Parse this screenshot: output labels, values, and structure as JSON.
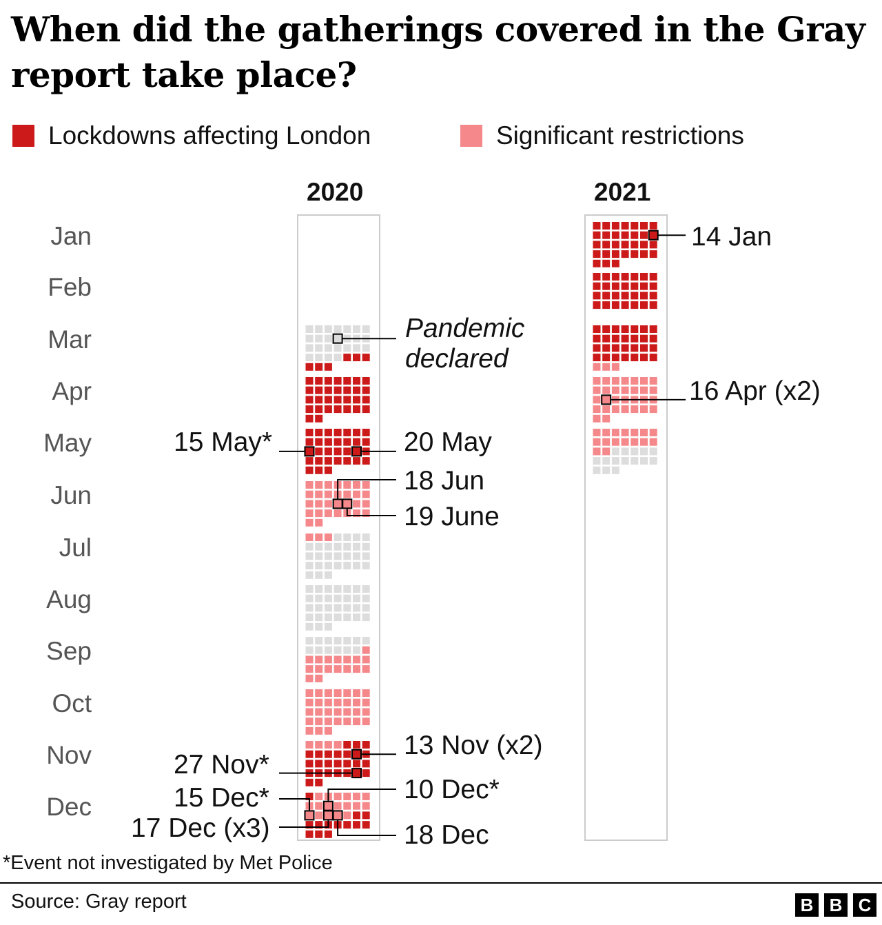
{
  "title": "When did the gatherings covered in the Gray report take place?",
  "legend": [
    {
      "label": "Lockdowns affecting London",
      "color": "#cc1a1a"
    },
    {
      "label": "Significant restrictions",
      "color": "#f5888a"
    }
  ],
  "footnote": "*Event not investigated by Met Police",
  "source": "Source: Gray report",
  "logo": [
    "B",
    "B",
    "C"
  ],
  "chart_data": {
    "type": "heatmap",
    "title": "When did the gatherings covered in the Gray report take place?",
    "months": [
      "Jan",
      "Feb",
      "Mar",
      "Apr",
      "May",
      "Jun",
      "Jul",
      "Aug",
      "Sep",
      "Oct",
      "Nov",
      "Dec"
    ],
    "colors": {
      "lockdown": "#cc1a1a",
      "restrictions": "#f5888a",
      "none": "#dddddd"
    },
    "series": [
      {
        "name": "Lockdowns affecting London",
        "ranges": [
          [
            "2020-03-26",
            "2020-05-31"
          ],
          [
            "2020-11-05",
            "2020-12-01"
          ],
          [
            "2020-12-20",
            "2021-03-28"
          ]
        ]
      },
      {
        "name": "Significant restrictions",
        "ranges": [
          [
            "2020-06-01",
            "2020-07-03"
          ],
          [
            "2020-09-14",
            "2020-11-04"
          ],
          [
            "2020-12-02",
            "2020-12-19"
          ],
          [
            "2021-03-29",
            "2021-05-16"
          ]
        ]
      }
    ],
    "years": [
      {
        "year": "2020",
        "start_month": 3,
        "end_month": 12
      },
      {
        "year": "2021",
        "start_month": 1,
        "end_month": 5
      }
    ],
    "annotations": [
      {
        "date": "2020-03-11",
        "label": "Pandemic declared",
        "side": "right",
        "italic": true
      },
      {
        "date": "2020-05-15",
        "label": "15 May*",
        "side": "left"
      },
      {
        "date": "2020-05-20",
        "label": "20 May",
        "side": "right"
      },
      {
        "date": "2020-06-18",
        "label": "18 Jun",
        "side": "right"
      },
      {
        "date": "2020-06-19",
        "label": "19 June",
        "side": "right"
      },
      {
        "date": "2020-11-13",
        "label": "13 Nov (x2)",
        "side": "right"
      },
      {
        "date": "2020-11-27",
        "label": "27 Nov*",
        "side": "left"
      },
      {
        "date": "2020-12-10",
        "label": "10 Dec*",
        "side": "right"
      },
      {
        "date": "2020-12-15",
        "label": "15 Dec*",
        "side": "left"
      },
      {
        "date": "2020-12-17",
        "label": "17 Dec (x3)",
        "side": "left"
      },
      {
        "date": "2020-12-18",
        "label": "18 Dec",
        "side": "right"
      },
      {
        "date": "2021-01-14",
        "label": "14 Jan",
        "side": "right"
      },
      {
        "date": "2021-04-16",
        "label": "16 Apr (x2)",
        "side": "right"
      }
    ]
  }
}
